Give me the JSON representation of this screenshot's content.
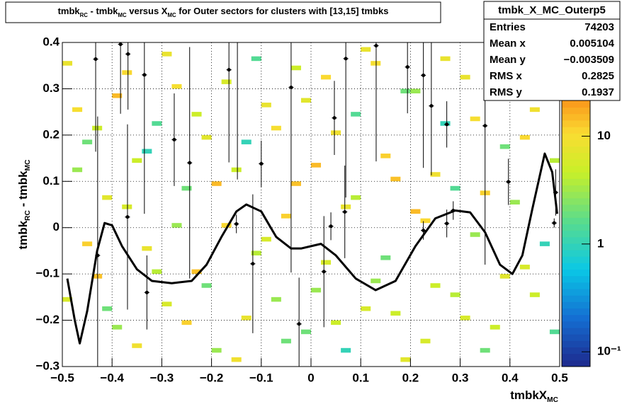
{
  "chart_data": {
    "type": "hist2d",
    "title_parts": [
      {
        "text": "tmbk"
      },
      {
        "text": "RC",
        "sub": true
      },
      {
        "text": " - tmbk"
      },
      {
        "text": "MC",
        "sub": true
      },
      {
        "text": " versus X"
      },
      {
        "text": "MC",
        "sub": true
      },
      {
        "text": " for Outer sectors for clusters with [13,15] tmbks"
      }
    ],
    "x_label_parts": [
      {
        "text": "tmbkX"
      },
      {
        "text": "MC",
        "sub": true
      }
    ],
    "y_label_parts": [
      {
        "text": "tmbk"
      },
      {
        "text": "RC",
        "sub": true
      },
      {
        "text": " - tmbk"
      },
      {
        "text": "MC",
        "sub": true
      }
    ],
    "xlim": [
      -0.5,
      0.5
    ],
    "ylim": [
      -0.3,
      0.4
    ],
    "xticks": [
      {
        "value": -0.5,
        "label": "−0.5"
      },
      {
        "value": -0.4,
        "label": "−0.4"
      },
      {
        "value": -0.3,
        "label": "−0.3"
      },
      {
        "value": -0.2,
        "label": "−0.2"
      },
      {
        "value": -0.1,
        "label": "−0.1"
      },
      0,
      0.1,
      0.2,
      0.3,
      0.4,
      0.5
    ],
    "yticks": [
      {
        "value": -0.3,
        "label": "−0.3"
      },
      {
        "value": -0.2,
        "label": "−0.2"
      },
      {
        "value": -0.1,
        "label": "−0.1"
      },
      0,
      0.1,
      0.2,
      0.3,
      0.4
    ],
    "zlim": [
      0.073,
      74
    ],
    "zticks": [
      {
        "value": 0.1,
        "label": "10⁻¹"
      },
      1,
      10
    ],
    "log_z": true,
    "grid": true,
    "bin_width": [
      0.02,
      0.01
    ],
    "cells": {
      "x": [
        -0.49,
        -0.47,
        -0.45,
        -0.43,
        -0.41,
        -0.39,
        -0.37,
        -0.35,
        -0.33,
        -0.31,
        -0.29,
        -0.27,
        -0.25,
        -0.23,
        -0.21,
        -0.19,
        -0.17,
        -0.15,
        -0.13,
        -0.11,
        -0.09,
        -0.07,
        -0.05,
        -0.03,
        -0.01,
        0.01,
        0.03,
        0.05,
        0.07,
        0.09,
        0.11,
        0.13,
        0.15,
        0.17,
        0.19,
        0.21,
        0.23,
        0.25,
        0.27,
        0.29,
        0.31,
        0.33,
        0.35,
        0.37,
        0.39,
        0.41,
        0.43,
        0.45,
        0.47,
        0.49,
        -0.49,
        -0.47,
        -0.45,
        -0.43,
        -0.41,
        -0.39,
        -0.37,
        -0.35,
        -0.33,
        -0.31,
        -0.29,
        -0.27,
        -0.25,
        -0.23,
        -0.21,
        -0.19,
        -0.17,
        -0.15,
        -0.13,
        -0.11,
        -0.09,
        -0.07,
        -0.05,
        -0.03,
        -0.01,
        0.01,
        0.03,
        0.05,
        0.07,
        0.09,
        0.11,
        0.13,
        0.15,
        0.17,
        0.19,
        0.21,
        0.23,
        0.25,
        0.27,
        0.29,
        0.31,
        0.33,
        0.35,
        0.37,
        0.39,
        0.41,
        0.43,
        0.45,
        0.47,
        0.49
      ],
      "y": [
        0.355,
        0.125,
        -0.035,
        0.215,
        -0.175,
        0.285,
        0.045,
        -0.255,
        0.165,
        -0.095,
        0.375,
        0.005,
        -0.205,
        0.245,
        -0.125,
        0.095,
        0.315,
        -0.285,
        0.185,
        -0.055,
        0.265,
        -0.155,
        0.025,
        0.345,
        -0.225,
        0.135,
        -0.075,
        0.205,
        -0.265,
        0.065,
        0.385,
        -0.115,
        0.155,
        -0.185,
        0.295,
        0.035,
        -0.245,
        0.115,
        0.225,
        -0.145,
        0.325,
        -0.015,
        0.075,
        -0.215,
        0.175,
        0.395,
        -0.085,
        0.255,
        -0.035,
        0.145,
        -0.155,
        0.255,
        0.185,
        -0.105,
        0.065,
        -0.215,
        0.335,
        0.145,
        -0.045,
        0.225,
        -0.165,
        0.305,
        0.085,
        -0.095,
        0.195,
        -0.265,
        0.005,
        0.125,
        -0.195,
        0.365,
        -0.025,
        0.215,
        -0.245,
        0.095,
        0.275,
        -0.135,
        0.325,
        -0.205,
        0.045,
        0.245,
        -0.175,
        0.355,
        -0.065,
        0.105,
        -0.285,
        0.295,
        0.015,
        -0.125,
        0.365,
        0.085,
        -0.195,
        0.235,
        -0.265,
        0.325,
        -0.105,
        0.055,
        0.195,
        -0.145,
        0.285,
        -0.225
      ],
      "z": [
        8,
        3,
        12,
        5,
        2,
        15,
        6,
        9,
        1,
        4,
        8,
        3,
        12,
        5,
        2,
        15,
        6,
        9,
        1,
        4,
        8,
        3,
        12,
        5,
        2,
        15,
        6,
        9,
        1,
        4,
        8,
        3,
        12,
        5,
        2,
        15,
        6,
        9,
        1,
        4,
        8,
        3,
        12,
        5,
        2,
        15,
        6,
        9,
        1,
        4,
        6,
        10,
        2,
        14,
        7,
        3,
        11,
        5,
        8,
        1.5,
        6,
        10,
        2,
        14,
        7,
        3,
        11,
        5,
        8,
        1.5,
        6,
        10,
        2,
        14,
        7,
        3,
        11,
        5,
        8,
        1.5,
        6,
        10,
        2,
        14,
        7,
        3,
        11,
        5,
        8,
        1.5,
        6,
        10,
        2,
        14,
        7,
        3,
        11,
        5,
        8,
        1.5
      ]
    },
    "profile": {
      "x": [
        -0.433,
        -0.383,
        -0.368,
        -0.335,
        -0.275,
        -0.244,
        -0.165,
        -0.148,
        -0.1,
        -0.117,
        -0.04,
        -0.024,
        0.026,
        0.047,
        0.07,
        0.068,
        0.04,
        0.131,
        0.194,
        0.226,
        0.242,
        0.273,
        0.286,
        0.273,
        0.35,
        0.397,
        -0.33,
        -0.369,
        -0.429,
        -0.15,
        0.226,
        0.489,
        0.492
      ],
      "y": [
        0.364,
        0.396,
        0.375,
        0.33,
        0.19,
        0.14,
        0.341,
        0.404,
        0.138,
        -0.078,
        0.303,
        -0.208,
        -0.095,
        0.237,
        0.365,
        0.034,
        0.003,
        0.393,
        0.347,
        0.329,
        0.263,
        0.223,
        0.037,
        0.009,
        0.22,
        0.099,
        -0.14,
        0.023,
        -0.06,
        0.008,
        -0.006,
        0.01,
        0.076
      ],
      "errors": [
        0.2,
        0.15,
        0.12,
        0.3,
        0.1,
        0.25,
        0.2,
        0.3,
        0.05,
        0.15,
        0.4,
        0.1,
        0.12,
        0.08,
        0.3,
        0.1,
        0.03,
        0.25,
        0.1,
        0.2,
        0.15,
        0.05,
        0.02,
        0.03,
        0.3,
        0.05,
        0.08,
        0.2,
        0.3,
        0.02,
        0.02,
        0.01,
        0.05
      ],
      "color": "#000000"
    },
    "fit": {
      "x": [
        -0.49,
        -0.475,
        -0.465,
        -0.45,
        -0.43,
        -0.415,
        -0.4,
        -0.38,
        -0.35,
        -0.32,
        -0.28,
        -0.24,
        -0.21,
        -0.18,
        -0.15,
        -0.13,
        -0.1,
        -0.07,
        -0.04,
        -0.02,
        0,
        0.02,
        0.05,
        0.09,
        0.13,
        0.17,
        0.21,
        0.25,
        0.29,
        0.32,
        0.35,
        0.38,
        0.405,
        0.425,
        0.445,
        0.47,
        0.485,
        0.495
      ],
      "y": [
        -0.11,
        -0.2,
        -0.25,
        -0.18,
        -0.05,
        0.01,
        0.005,
        -0.04,
        -0.09,
        -0.115,
        -0.12,
        -0.115,
        -0.08,
        -0.02,
        0.035,
        0.05,
        0.035,
        -0.02,
        -0.045,
        -0.045,
        -0.04,
        -0.035,
        -0.06,
        -0.11,
        -0.135,
        -0.115,
        -0.04,
        0.02,
        0.037,
        0.033,
        -0.01,
        -0.08,
        -0.1,
        -0.06,
        0.04,
        0.16,
        0.12,
        0.03
      ],
      "color": "#000000"
    },
    "stats": {
      "title": "tmbk_X_MC_Outerp5",
      "names": [
        "Entries",
        "Mean x",
        "Mean y",
        "RMS x",
        "RMS y"
      ],
      "values": [
        74203,
        0.005104,
        -0.003509,
        0.2825,
        0.1937
      ],
      "value_labels": [
        "74203",
        "0.005104",
        "−0.003509",
        "0.2825",
        "0.1937"
      ]
    }
  }
}
